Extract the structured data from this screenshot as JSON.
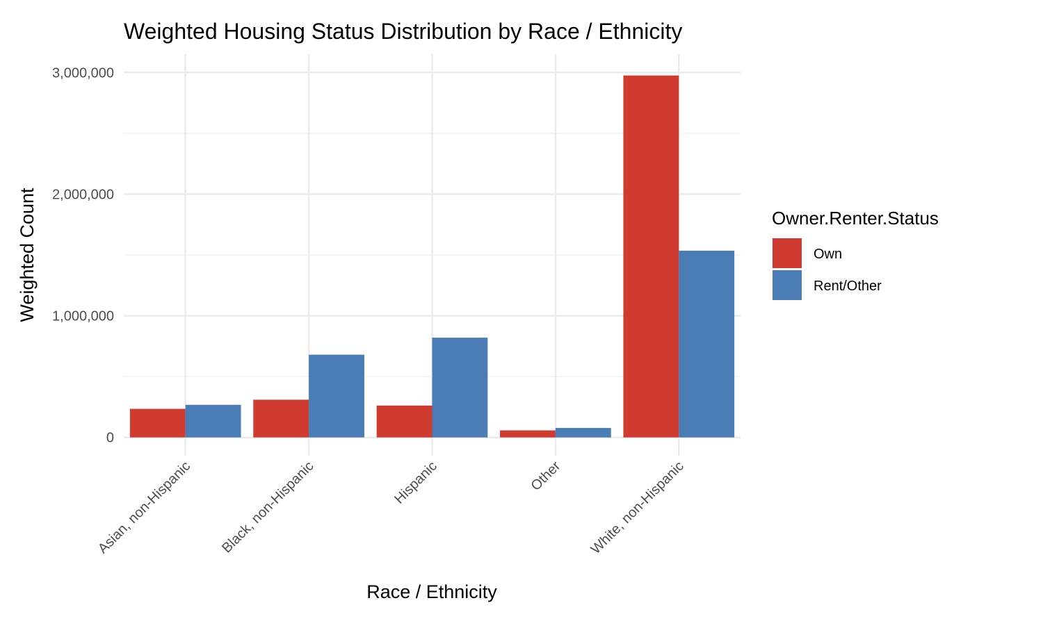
{
  "chart_data": {
    "type": "bar",
    "title": "Weighted Housing Status Distribution by Race / Ethnicity",
    "xlabel": "Race / Ethnicity",
    "ylabel": "Weighted Count",
    "categories": [
      "Asian, non-Hispanic",
      "Black, non-Hispanic",
      "Hispanic",
      "Other",
      "White, non-Hispanic"
    ],
    "series": [
      {
        "name": "Own",
        "color": "#d03b2f",
        "values": [
          235000,
          310000,
          262000,
          58000,
          2975000
        ]
      },
      {
        "name": "Rent/Other",
        "color": "#4a7db5",
        "values": [
          268000,
          680000,
          820000,
          78000,
          1535000
        ]
      }
    ],
    "ylim": [
      -150000,
      3150000
    ],
    "yticks": [
      0,
      1000000,
      2000000,
      3000000
    ],
    "ytick_labels": [
      "0",
      "1,000,000",
      "2,000,000",
      "3,000,000"
    ],
    "grid": true,
    "legend": {
      "title": "Owner.Renter.Status",
      "position": "right"
    }
  }
}
